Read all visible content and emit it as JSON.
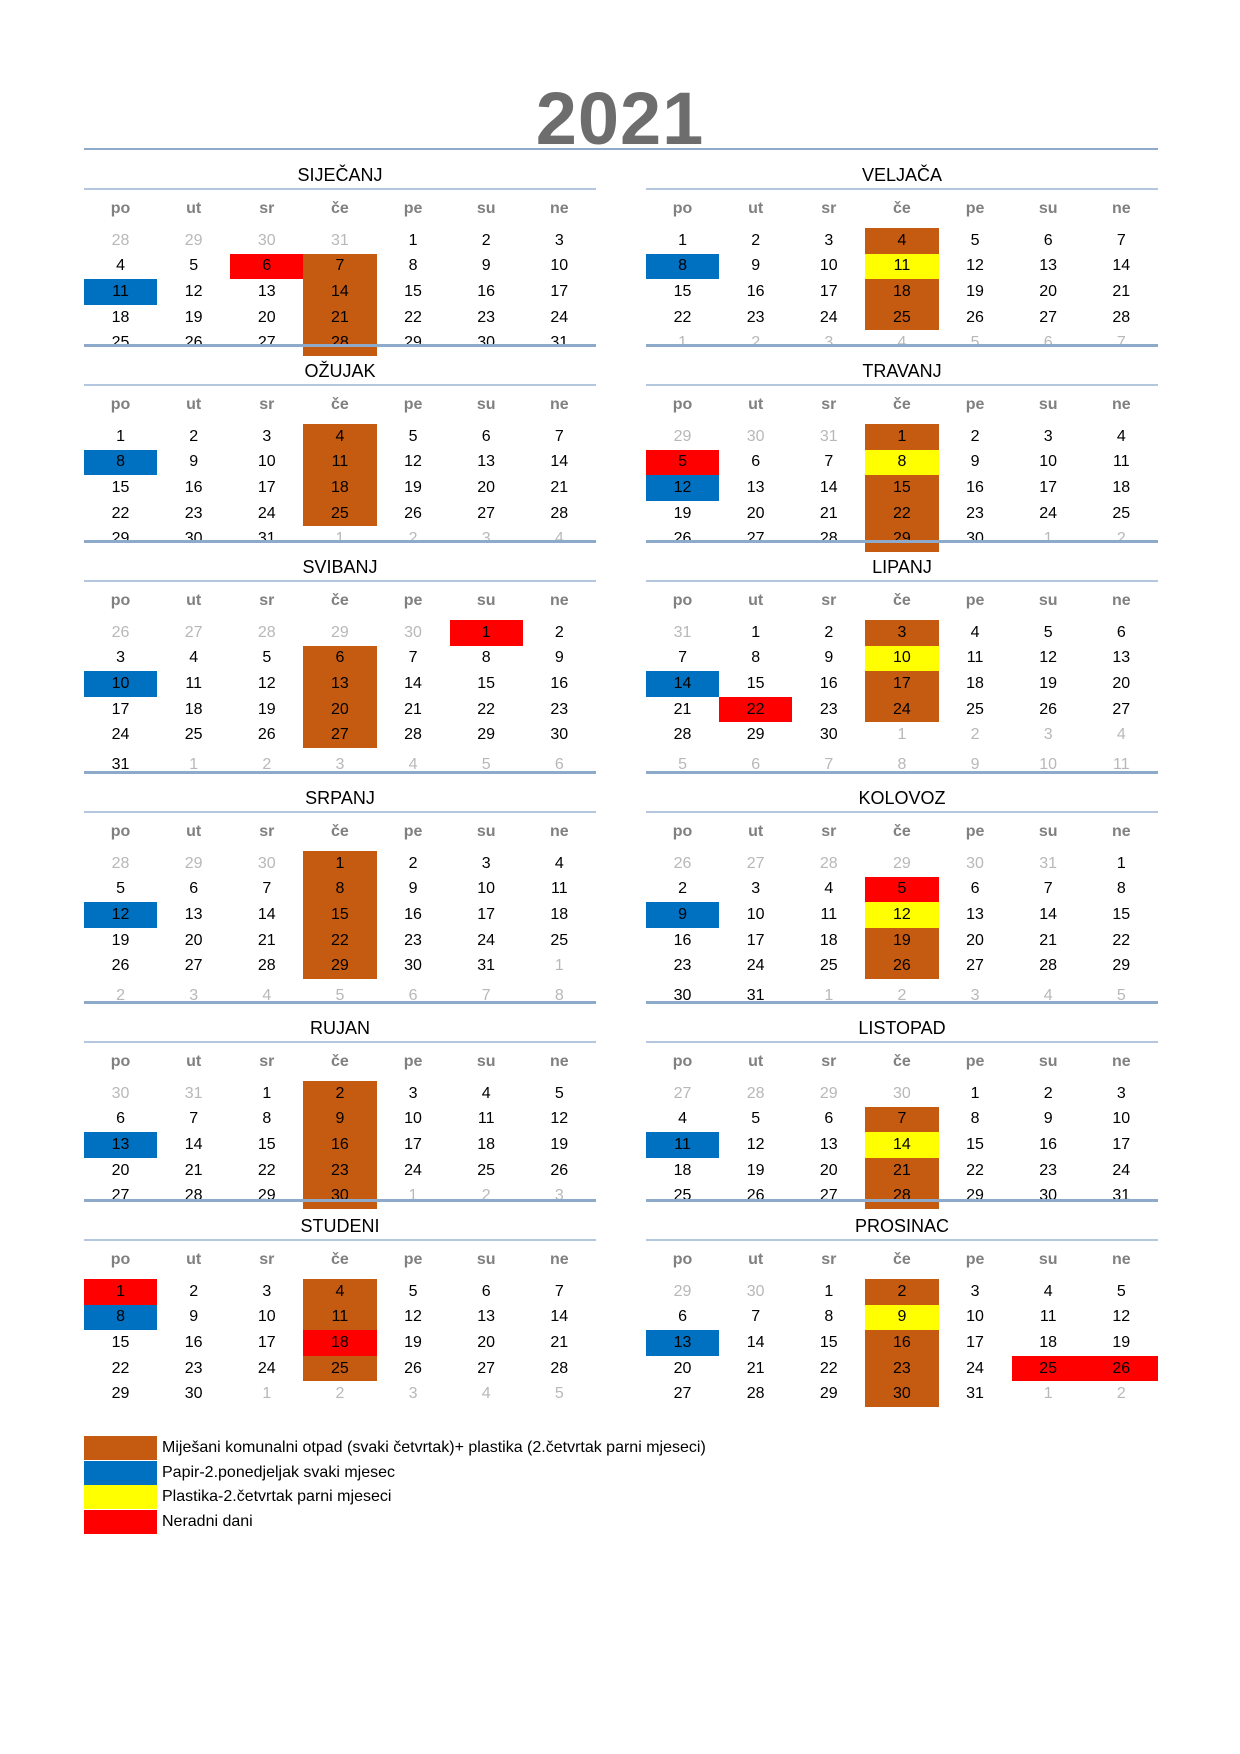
{
  "title": "2021",
  "weekdays": [
    "po",
    "ut",
    "sr",
    "če",
    "pe",
    "su",
    "ne"
  ],
  "colors": {
    "mixed": "#c55a11",
    "paper": "#0070c0",
    "plastic": "#ffff00",
    "holiday": "#ff0000"
  },
  "legend": [
    {
      "key": "mixed",
      "label": "Miješani komunalni otpad (svaki četvrtak)+ plastika (2.četvrtak parni mjeseci)"
    },
    {
      "key": "paper",
      "label": "Papir-2.ponedjeljak svaki mjesec"
    },
    {
      "key": "plastic",
      "label": "Plastika-2.četvrtak parni mjeseci"
    },
    {
      "key": "holiday",
      "label": "Neradni dani"
    }
  ],
  "months": [
    {
      "name": "SIJEČANJ",
      "first_offset": 4,
      "days_in_month": 31,
      "prev_days": 31,
      "weeks_shown": 5,
      "marked": {
        "mixed": [
          7,
          14,
          21,
          28
        ],
        "paper": [
          11
        ],
        "plastic": [],
        "holiday": [
          6
        ]
      }
    },
    {
      "name": "VELJAČA",
      "first_offset": 0,
      "days_in_month": 28,
      "prev_days": 31,
      "weeks_shown": 5,
      "marked": {
        "mixed": [
          4,
          18,
          25
        ],
        "paper": [
          8
        ],
        "plastic": [
          11
        ],
        "holiday": []
      }
    },
    {
      "name": "OŽUJAK",
      "first_offset": 0,
      "days_in_month": 31,
      "prev_days": 28,
      "weeks_shown": 5,
      "marked": {
        "mixed": [
          4,
          11,
          18,
          25
        ],
        "paper": [
          8
        ],
        "plastic": [],
        "holiday": []
      }
    },
    {
      "name": "TRAVANJ",
      "first_offset": 3,
      "days_in_month": 30,
      "prev_days": 31,
      "weeks_shown": 5,
      "marked": {
        "mixed": [
          1,
          15,
          22,
          29
        ],
        "paper": [
          12
        ],
        "plastic": [
          8
        ],
        "holiday": [
          5
        ]
      }
    },
    {
      "name": "SVIBANJ",
      "first_offset": 5,
      "days_in_month": 31,
      "prev_days": 30,
      "weeks_shown": 6,
      "marked": {
        "mixed": [
          6,
          13,
          20,
          27
        ],
        "paper": [
          10
        ],
        "plastic": [],
        "holiday": [
          1
        ]
      }
    },
    {
      "name": "LIPANJ",
      "first_offset": 1,
      "days_in_month": 30,
      "prev_days": 31,
      "weeks_shown": 6,
      "marked": {
        "mixed": [
          3,
          17,
          24
        ],
        "paper": [
          14
        ],
        "plastic": [
          10
        ],
        "holiday": [
          22
        ]
      }
    },
    {
      "name": "SRPANJ",
      "first_offset": 3,
      "days_in_month": 31,
      "prev_days": 30,
      "weeks_shown": 6,
      "marked": {
        "mixed": [
          1,
          8,
          15,
          22,
          29
        ],
        "paper": [
          12
        ],
        "plastic": [],
        "holiday": []
      }
    },
    {
      "name": "KOLOVOZ",
      "first_offset": 6,
      "days_in_month": 31,
      "prev_days": 31,
      "weeks_shown": 6,
      "marked": {
        "mixed": [
          19,
          26
        ],
        "paper": [
          9
        ],
        "plastic": [
          12
        ],
        "holiday": [
          5
        ]
      }
    },
    {
      "name": "RUJAN",
      "first_offset": 2,
      "days_in_month": 30,
      "prev_days": 31,
      "weeks_shown": 5,
      "marked": {
        "mixed": [
          2,
          9,
          16,
          23,
          30
        ],
        "paper": [
          13
        ],
        "plastic": [],
        "holiday": []
      }
    },
    {
      "name": "LISTOPAD",
      "first_offset": 4,
      "days_in_month": 31,
      "prev_days": 30,
      "weeks_shown": 5,
      "marked": {
        "mixed": [
          7,
          21,
          28
        ],
        "paper": [
          11
        ],
        "plastic": [
          14
        ],
        "holiday": []
      }
    },
    {
      "name": "STUDENI",
      "first_offset": 0,
      "days_in_month": 30,
      "prev_days": 31,
      "weeks_shown": 5,
      "marked": {
        "mixed": [
          4,
          11,
          25
        ],
        "paper": [
          8
        ],
        "plastic": [],
        "holiday": [
          1,
          18
        ]
      }
    },
    {
      "name": "PROSINAC",
      "first_offset": 2,
      "days_in_month": 31,
      "prev_days": 30,
      "weeks_shown": 5,
      "marked": {
        "mixed": [
          2,
          16,
          23,
          30
        ],
        "paper": [
          13
        ],
        "plastic": [
          9
        ],
        "holiday": [
          25,
          26
        ]
      }
    }
  ]
}
